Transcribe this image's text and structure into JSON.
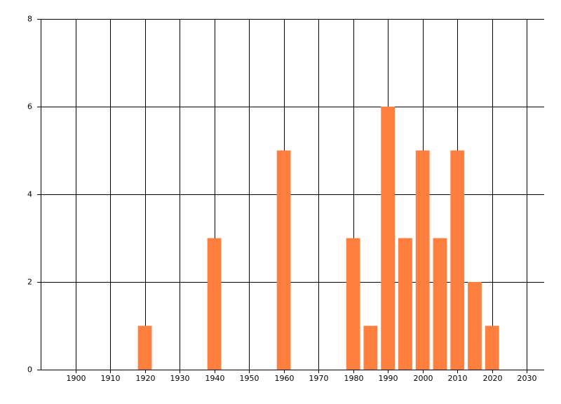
{
  "chart_data": {
    "type": "bar",
    "x": [
      1920,
      1940,
      1960,
      1980,
      1985,
      1990,
      1995,
      2000,
      2005,
      2010,
      2015,
      2020
    ],
    "values": [
      1,
      3,
      5,
      3,
      1,
      6,
      3,
      5,
      3,
      5,
      2,
      1
    ],
    "color": "#ff7f3f",
    "xlim": [
      1890,
      2035
    ],
    "xticks": [
      1900,
      1910,
      1920,
      1930,
      1940,
      1950,
      1960,
      1970,
      1980,
      1990,
      2000,
      2010,
      2020,
      2030
    ],
    "ylim": [
      0,
      8
    ],
    "yticks": [
      0,
      2,
      4,
      6,
      8
    ],
    "grid": true
  }
}
